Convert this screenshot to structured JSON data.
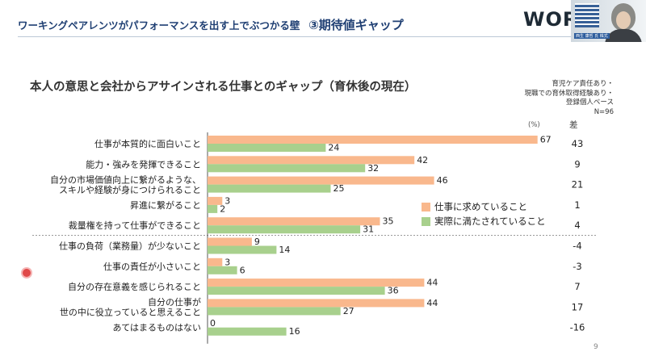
{
  "slide": {
    "title_lead": "ワーキングペアレンツがパフォーマンスを出す上でぶつかる壁",
    "title_sub": "③期待値ギャップ",
    "logo_text": "WOR",
    "webcam_caption": "西生 康哲 氏 株式",
    "page_number": "9"
  },
  "colors": {
    "title": "#1f3f73",
    "demanded": "#f9b88d",
    "actual": "#a8d08d"
  },
  "chart_data": {
    "type": "bar",
    "orientation": "horizontal",
    "title": "本人の意思と会社からアサインされる仕事とのギャップ（育休後の現在）",
    "note": [
      "育児ケア責任あり・",
      "現職での育休取得経験あり・",
      "登録個人ベース",
      "N=96"
    ],
    "unit": "(%)",
    "diff_header": "差",
    "categories": [
      [
        "仕事が本質的に面白いこと"
      ],
      [
        "能力・強みを発揮できること"
      ],
      [
        "自分の市場価値向上に繋がるような、",
        "スキルや経験が身につけられること"
      ],
      [
        "昇進に繋がること"
      ],
      [
        "裁量権を持って仕事ができること"
      ],
      [
        "仕事の負荷（業務量）が少ないこと"
      ],
      [
        "仕事の責任が小さいこと"
      ],
      [
        "自分の存在意義を感じられること"
      ],
      [
        "自分の仕事が",
        "世の中に役立っていると思えること"
      ],
      [
        "あてはまるものはない"
      ]
    ],
    "series": [
      {
        "name": "仕事に求めていること",
        "values": [
          67,
          42,
          46,
          3,
          35,
          9,
          3,
          44,
          44,
          0
        ]
      },
      {
        "name": "実際に満たされていること",
        "values": [
          24,
          32,
          25,
          2,
          31,
          14,
          6,
          36,
          27,
          16
        ]
      }
    ],
    "differences": [
      "43",
      "9",
      "21",
      "1",
      "4",
      "-4",
      "-3",
      "7",
      "17",
      "-16"
    ],
    "xlim": [
      0,
      100
    ],
    "separator_after_index": 4,
    "legend_position": "right-middle"
  }
}
